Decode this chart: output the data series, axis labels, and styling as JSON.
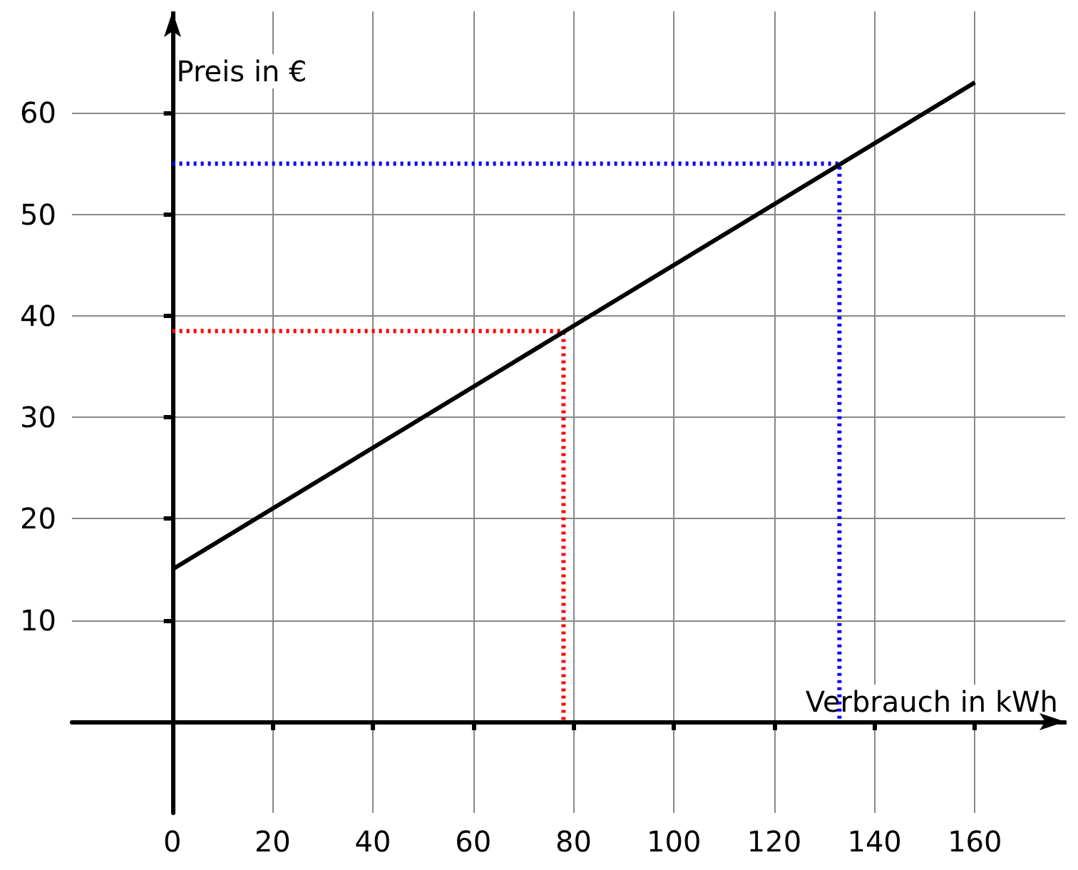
{
  "chart_data": {
    "type": "line",
    "xlabel": "Verbrauch in kWh",
    "ylabel": "Preis in €",
    "xlim": [
      -20,
      178
    ],
    "ylim": [
      -9,
      70
    ],
    "xticks": [
      0,
      20,
      40,
      60,
      80,
      100,
      120,
      140,
      160
    ],
    "yticks": [
      10,
      20,
      30,
      40,
      50,
      60
    ],
    "grid": true,
    "marker": "none",
    "series": [
      {
        "color": "#000000",
        "x": [
          0,
          160
        ],
        "values": [
          15,
          63
        ],
        "line_style": "solid"
      },
      {
        "color": "#ff0000",
        "x": [
          0,
          78,
          78
        ],
        "values": [
          38.5,
          38.5,
          0
        ],
        "line_style": "dotted"
      },
      {
        "color": "#0000ff",
        "x": [
          0,
          133,
          133
        ],
        "values": [
          55,
          55,
          0
        ],
        "line_style": "dotted"
      }
    ]
  }
}
